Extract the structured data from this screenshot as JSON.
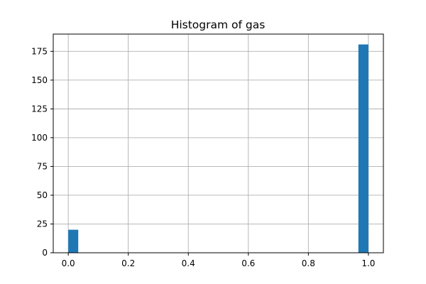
{
  "chart_data": {
    "type": "bar",
    "title": "Histogram of gas",
    "xlabel": "",
    "ylabel": "",
    "xlim": [
      -0.05,
      1.05
    ],
    "ylim": [
      0,
      190
    ],
    "xticks": [
      0.0,
      0.2,
      0.4,
      0.6,
      0.8,
      1.0
    ],
    "xtick_labels": [
      "0.0",
      "0.2",
      "0.4",
      "0.6",
      "0.8",
      "1.0"
    ],
    "yticks": [
      0,
      25,
      50,
      75,
      100,
      125,
      150,
      175
    ],
    "ytick_labels": [
      "0",
      "25",
      "50",
      "75",
      "100",
      "125",
      "150",
      "175"
    ],
    "grid": true,
    "bin_width": 0.0333,
    "bars": [
      {
        "x_start": 0.0,
        "x_end": 0.0333,
        "value": 20
      },
      {
        "x_start": 0.9667,
        "x_end": 1.0,
        "value": 181
      }
    ],
    "color": "#1f77b4"
  }
}
